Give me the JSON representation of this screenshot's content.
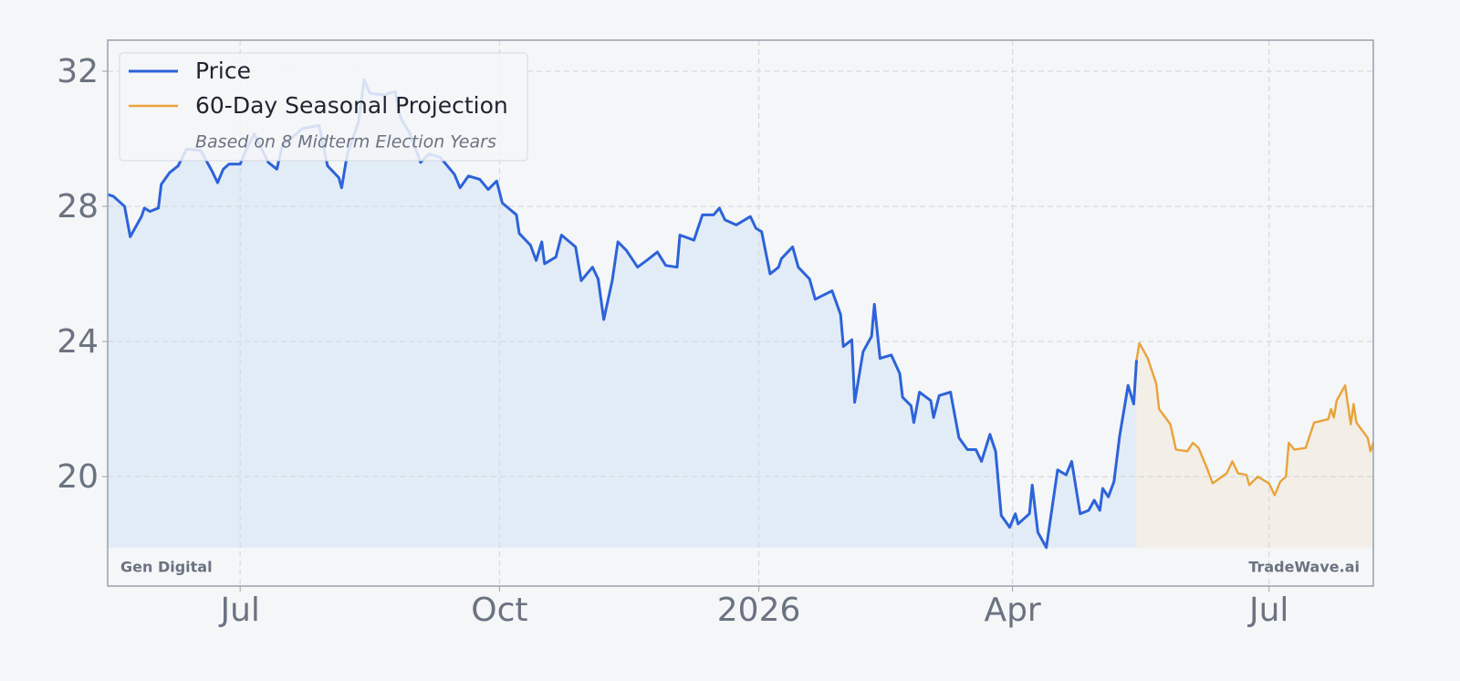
{
  "chart_data": {
    "type": "line",
    "series": [
      {
        "name": "Price",
        "color": "#2d63d9",
        "fill": "#e2ecf7",
        "x": [
          0,
          2,
          6,
          8,
          12,
          13,
          15,
          18,
          19,
          22,
          25,
          28,
          33,
          37,
          39,
          41,
          43,
          47,
          49,
          52,
          57,
          60,
          62,
          69,
          75,
          78,
          82,
          83,
          85,
          89,
          91,
          93,
          98,
          102,
          104,
          107,
          111,
          114,
          118,
          120,
          123,
          125,
          128,
          132,
          135,
          138,
          140,
          145,
          146,
          150,
          152,
          154,
          155,
          159,
          161,
          166,
          168,
          172,
          174,
          176,
          179,
          181,
          184,
          188,
          192,
          195,
          198,
          202,
          203,
          208,
          211,
          215,
          217,
          219,
          223,
          228,
          230,
          232,
          235,
          238,
          239,
          243,
          245,
          249,
          251,
          257,
          260,
          261,
          264,
          265,
          268,
          271,
          272,
          274,
          278,
          281,
          282,
          285,
          286,
          288,
          292,
          293,
          295,
          299,
          302,
          305,
          308,
          310,
          313,
          315,
          317,
          320,
          322,
          323,
          327,
          328,
          330,
          333,
          335,
          337,
          340,
          342,
          345,
          348,
          350,
          352,
          353,
          355,
          357,
          359,
          362,
          364,
          365
        ],
        "values": [
          28.35,
          28.3,
          28.0,
          27.1,
          27.7,
          27.95,
          27.85,
          27.95,
          28.65,
          29.0,
          29.2,
          29.7,
          29.65,
          29.05,
          28.7,
          29.1,
          29.25,
          29.25,
          29.65,
          30.15,
          29.3,
          29.1,
          29.8,
          30.3,
          30.4,
          29.2,
          28.85,
          28.55,
          29.55,
          30.5,
          31.75,
          31.35,
          31.3,
          31.4,
          30.6,
          30.2,
          29.3,
          29.55,
          29.45,
          29.25,
          28.95,
          28.55,
          28.9,
          28.8,
          28.5,
          28.75,
          28.1,
          27.75,
          27.2,
          26.85,
          26.4,
          26.95,
          26.3,
          26.5,
          27.15,
          26.8,
          25.8,
          26.2,
          25.85,
          24.65,
          25.8,
          26.95,
          26.7,
          26.2,
          26.45,
          26.65,
          26.25,
          26.2,
          27.15,
          27.0,
          27.75,
          27.75,
          27.95,
          27.6,
          27.45,
          27.7,
          27.35,
          27.25,
          26.0,
          26.2,
          26.45,
          26.8,
          26.2,
          25.85,
          25.25,
          25.5,
          24.8,
          23.85,
          24.05,
          22.2,
          23.7,
          24.15,
          25.1,
          23.5,
          23.6,
          23.05,
          22.35,
          22.1,
          21.6,
          22.5,
          22.25,
          21.75,
          22.4,
          22.5,
          21.15,
          20.8,
          20.8,
          20.45,
          21.25,
          20.75,
          18.85,
          18.5,
          18.9,
          18.6,
          18.9,
          19.75,
          18.35,
          17.9,
          19.05,
          20.2,
          20.05,
          20.45,
          18.9,
          19.0,
          19.3,
          19.0,
          19.65,
          19.4,
          19.85,
          21.2,
          22.7,
          22.15,
          23.45
        ]
      },
      {
        "name": "60-Day Seasonal Projection",
        "color": "#e8a33a",
        "fill": "#f3eee6",
        "x": [
          365,
          366,
          369,
          372,
          373,
          377,
          379,
          383,
          385,
          387,
          390,
          392,
          397,
          399,
          401,
          404,
          405,
          408,
          412,
          414,
          416,
          418,
          419,
          421,
          425,
          428,
          433,
          434,
          435,
          436,
          439,
          441,
          442,
          443,
          447,
          448,
          449
        ],
        "values": [
          23.45,
          23.95,
          23.5,
          22.75,
          22.0,
          21.55,
          20.8,
          20.75,
          21.0,
          20.85,
          20.25,
          19.8,
          20.1,
          20.45,
          20.1,
          20.05,
          19.75,
          20.0,
          19.8,
          19.45,
          19.85,
          20.0,
          21.0,
          20.8,
          20.85,
          21.6,
          21.7,
          22.0,
          21.75,
          22.25,
          22.7,
          21.55,
          22.15,
          21.6,
          21.15,
          20.75,
          21.0
        ]
      }
    ],
    "legend_note": "Based on 8 Midterm Election Years",
    "watermark_left": "Gen Digital",
    "watermark_right": "TradeWave.ai",
    "xlim": [
      0,
      449
    ],
    "xticks": [
      {
        "value": 47,
        "label": "Jul"
      },
      {
        "value": 139,
        "label": "Oct"
      },
      {
        "value": 231,
        "label": "2026"
      },
      {
        "value": 321,
        "label": "Apr"
      },
      {
        "value": 412,
        "label": "Jul"
      }
    ],
    "ylim": [
      16.76,
      32.92
    ],
    "yticks": [
      20,
      24,
      28,
      32
    ],
    "grid": true,
    "legend_position": "upper left"
  }
}
